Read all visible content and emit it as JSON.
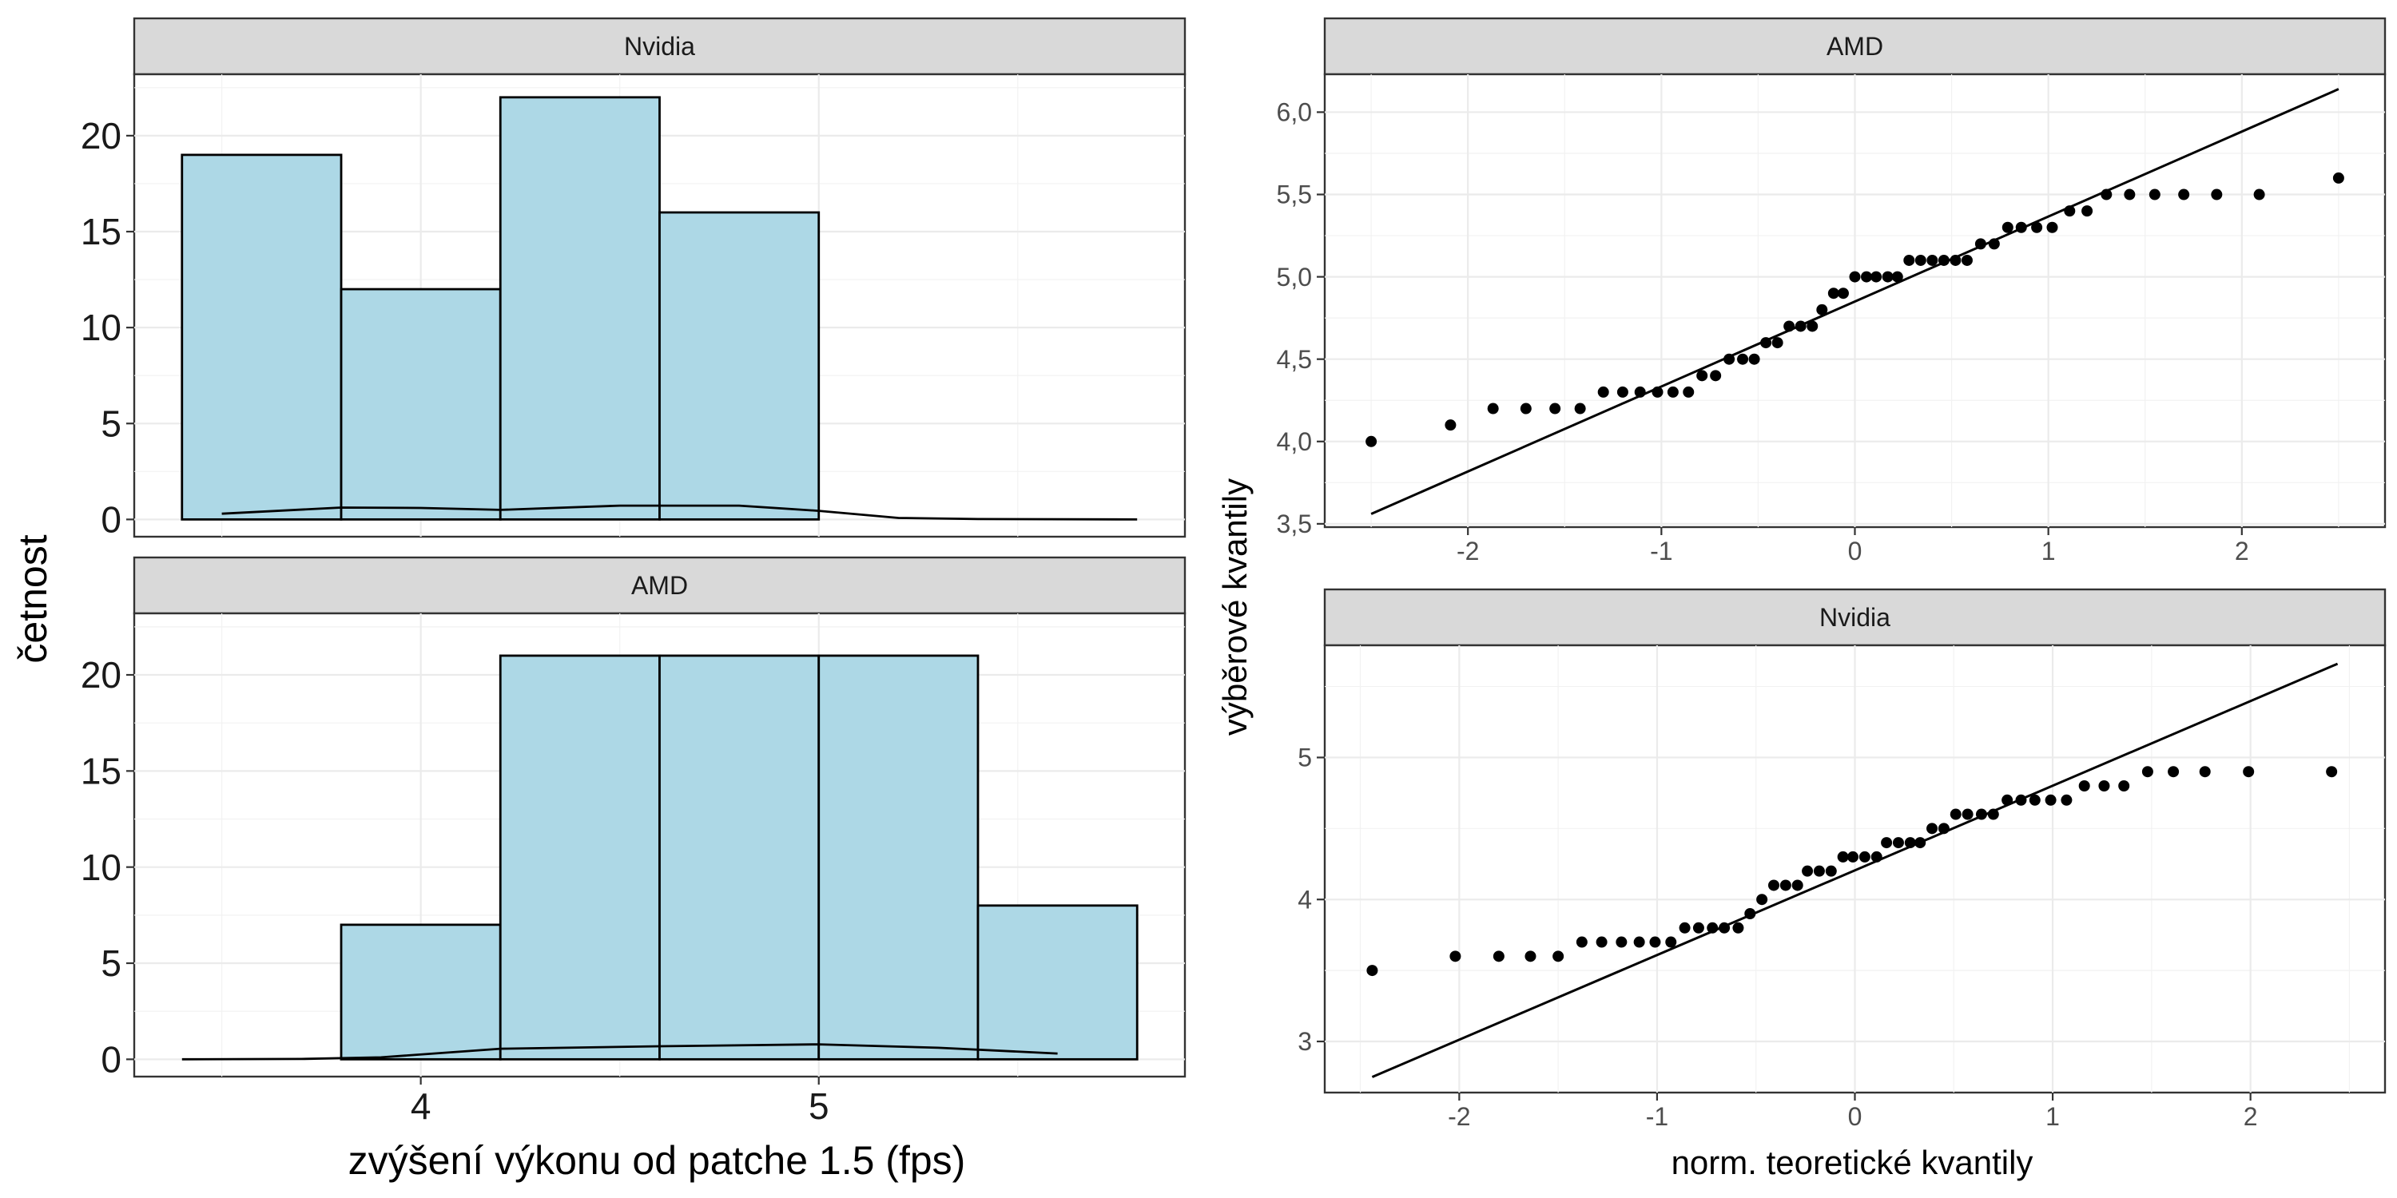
{
  "figure": {
    "hist_xlabel": "zvýšení výkonu od patche 1.5 (fps)",
    "hist_ylabel": "četnost",
    "qq_xlabel": "norm. teoretické kvantily",
    "qq_ylabel": "výběrové kvantily"
  },
  "chart_data": [
    {
      "type": "bar",
      "panel": "Nvidia",
      "facet_label": "Nvidia",
      "bin_edges": [
        3.4,
        3.8,
        4.2,
        4.6,
        5.0,
        5.4,
        5.8
      ],
      "values": [
        19,
        12,
        22,
        16,
        0,
        0
      ],
      "xlim": [
        3.28,
        5.92
      ],
      "ylim": [
        -0.9,
        23.2
      ],
      "xticks": [
        4,
        5
      ],
      "yticks": [
        0,
        5,
        10,
        15,
        20
      ],
      "density": [
        [
          3.5,
          0.3
        ],
        [
          3.8,
          0.62
        ],
        [
          4.0,
          0.6
        ],
        [
          4.2,
          0.5
        ],
        [
          4.5,
          0.72
        ],
        [
          4.8,
          0.72
        ],
        [
          5.0,
          0.45
        ],
        [
          5.2,
          0.08
        ],
        [
          5.4,
          0.02
        ],
        [
          5.8,
          0.0
        ]
      ],
      "grid": true
    },
    {
      "type": "bar",
      "panel": "AMD",
      "facet_label": "AMD",
      "bin_edges": [
        3.4,
        3.8,
        4.2,
        4.6,
        5.0,
        5.4,
        5.8
      ],
      "values": [
        0,
        7,
        21,
        21,
        21,
        8
      ],
      "xlim": [
        3.28,
        5.92
      ],
      "ylim": [
        -0.9,
        23.2
      ],
      "xticks": [
        4,
        5
      ],
      "yticks": [
        0,
        5,
        10,
        15,
        20
      ],
      "density": [
        [
          3.4,
          0.0
        ],
        [
          3.7,
          0.02
        ],
        [
          3.9,
          0.1
        ],
        [
          4.2,
          0.55
        ],
        [
          4.6,
          0.68
        ],
        [
          5.0,
          0.78
        ],
        [
          5.3,
          0.6
        ],
        [
          5.6,
          0.3
        ]
      ],
      "grid": true
    },
    {
      "type": "scatter",
      "panel": "AMD",
      "facet_label": "AMD",
      "xlim": [
        -2.74,
        2.74
      ],
      "ylim": [
        3.48,
        6.23
      ],
      "xticks": [
        -2,
        -1,
        0,
        1,
        2
      ],
      "yticks": [
        3.5,
        4.0,
        4.5,
        5.0,
        5.5,
        6.0
      ],
      "ytick_labels": [
        "3,5",
        "4,0",
        "4,5",
        "5,0",
        "5,5",
        "6,0"
      ],
      "points": [
        [
          -2.5,
          4.0
        ],
        [
          -2.09,
          4.1
        ],
        [
          -1.87,
          4.2
        ],
        [
          -1.7,
          4.2
        ],
        [
          -1.55,
          4.2
        ],
        [
          -1.42,
          4.2
        ],
        [
          -1.3,
          4.3
        ],
        [
          -1.2,
          4.3
        ],
        [
          -1.11,
          4.3
        ],
        [
          -1.02,
          4.3
        ],
        [
          -0.94,
          4.3
        ],
        [
          -0.86,
          4.3
        ],
        [
          -0.79,
          4.4
        ],
        [
          -0.72,
          4.4
        ],
        [
          -0.65,
          4.5
        ],
        [
          -0.58,
          4.5
        ],
        [
          -0.52,
          4.5
        ],
        [
          -0.46,
          4.6
        ],
        [
          -0.4,
          4.6
        ],
        [
          -0.34,
          4.7
        ],
        [
          -0.28,
          4.7
        ],
        [
          -0.22,
          4.7
        ],
        [
          -0.17,
          4.8
        ],
        [
          -0.11,
          4.9
        ],
        [
          -0.06,
          4.9
        ],
        [
          0.0,
          5.0
        ],
        [
          0.06,
          5.0
        ],
        [
          0.11,
          5.0
        ],
        [
          0.17,
          5.0
        ],
        [
          0.22,
          5.0
        ],
        [
          0.28,
          5.1
        ],
        [
          0.34,
          5.1
        ],
        [
          0.4,
          5.1
        ],
        [
          0.46,
          5.1
        ],
        [
          0.52,
          5.1
        ],
        [
          0.58,
          5.1
        ],
        [
          0.65,
          5.2
        ],
        [
          0.72,
          5.2
        ],
        [
          0.79,
          5.3
        ],
        [
          0.86,
          5.3
        ],
        [
          0.94,
          5.3
        ],
        [
          1.02,
          5.3
        ],
        [
          1.11,
          5.4
        ],
        [
          1.2,
          5.4
        ],
        [
          1.3,
          5.5
        ],
        [
          1.42,
          5.5
        ],
        [
          1.55,
          5.5
        ],
        [
          1.7,
          5.5
        ],
        [
          1.87,
          5.5
        ],
        [
          2.09,
          5.5
        ],
        [
          2.5,
          5.6
        ]
      ],
      "reference_line": [
        [
          -2.5,
          3.56
        ],
        [
          2.5,
          6.14
        ]
      ],
      "grid": true
    },
    {
      "type": "scatter",
      "panel": "Nvidia",
      "facet_label": "Nvidia",
      "xlim": [
        -2.68,
        2.68
      ],
      "ylim": [
        2.64,
        5.79
      ],
      "xticks": [
        -2,
        -1,
        0,
        1,
        2
      ],
      "yticks": [
        3,
        4,
        5
      ],
      "ytick_labels": [
        "3",
        "4",
        "5"
      ],
      "points": [
        [
          -2.44,
          3.5
        ],
        [
          -2.02,
          3.6
        ],
        [
          -1.8,
          3.6
        ],
        [
          -1.64,
          3.6
        ],
        [
          -1.5,
          3.6
        ],
        [
          -1.38,
          3.7
        ],
        [
          -1.28,
          3.7
        ],
        [
          -1.18,
          3.7
        ],
        [
          -1.09,
          3.7
        ],
        [
          -1.01,
          3.7
        ],
        [
          -0.93,
          3.7
        ],
        [
          -0.86,
          3.8
        ],
        [
          -0.79,
          3.8
        ],
        [
          -0.72,
          3.8
        ],
        [
          -0.66,
          3.8
        ],
        [
          -0.59,
          3.8
        ],
        [
          -0.53,
          3.9
        ],
        [
          -0.47,
          4.0
        ],
        [
          -0.41,
          4.1
        ],
        [
          -0.35,
          4.1
        ],
        [
          -0.29,
          4.1
        ],
        [
          -0.24,
          4.2
        ],
        [
          -0.18,
          4.2
        ],
        [
          -0.12,
          4.2
        ],
        [
          -0.06,
          4.3
        ],
        [
          -0.01,
          4.3
        ],
        [
          0.05,
          4.3
        ],
        [
          0.11,
          4.3
        ],
        [
          0.16,
          4.4
        ],
        [
          0.22,
          4.4
        ],
        [
          0.28,
          4.4
        ],
        [
          0.33,
          4.4
        ],
        [
          0.39,
          4.5
        ],
        [
          0.45,
          4.5
        ],
        [
          0.51,
          4.6
        ],
        [
          0.57,
          4.6
        ],
        [
          0.64,
          4.6
        ],
        [
          0.7,
          4.6
        ],
        [
          0.77,
          4.7
        ],
        [
          0.84,
          4.7
        ],
        [
          0.91,
          4.7
        ],
        [
          0.99,
          4.7
        ],
        [
          1.07,
          4.7
        ],
        [
          1.16,
          4.8
        ],
        [
          1.26,
          4.8
        ],
        [
          1.36,
          4.8
        ],
        [
          1.48,
          4.9
        ],
        [
          1.61,
          4.9
        ],
        [
          1.77,
          4.9
        ],
        [
          1.99,
          4.9
        ],
        [
          2.41,
          4.9
        ]
      ],
      "reference_line": [
        [
          -2.44,
          2.75
        ],
        [
          2.44,
          5.66
        ]
      ],
      "grid": true
    }
  ]
}
